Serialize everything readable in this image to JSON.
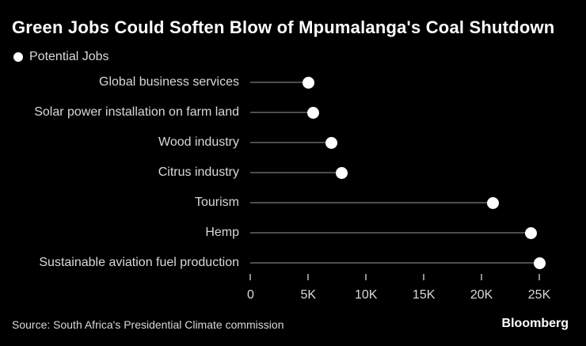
{
  "theme": {
    "background": "#000000",
    "title_color": "#ffffff",
    "label_color": "#d9d9d9",
    "line_color": "#4d4d4d",
    "dot_color": "#ffffff",
    "tick_color": "#8c8c8c"
  },
  "chart_data": {
    "type": "scatter",
    "variant": "horizontal-lollipop-dot",
    "title": "Green Jobs Could Soften Blow of Mpumalanga's Coal Shutdown",
    "legend": [
      "Potential Jobs"
    ],
    "legend_position": "top-left",
    "categories": [
      "Global business services",
      "Solar power installation on farm land",
      "Wood industry",
      "Citrus industry",
      "Tourism",
      "Hemp",
      "Sustainable aviation fuel production"
    ],
    "values": [
      5000,
      5400,
      7000,
      7900,
      21000,
      24300,
      25000
    ],
    "xlabel": "",
    "ylabel": "",
    "xlim": [
      0,
      25000
    ],
    "x_ticks": [
      {
        "label": "0",
        "value": 0
      },
      {
        "label": "5K",
        "value": 5000
      },
      {
        "label": "10K",
        "value": 10000
      },
      {
        "label": "15K",
        "value": 15000
      },
      {
        "label": "20K",
        "value": 20000
      },
      {
        "label": "25K",
        "value": 25000
      }
    ],
    "grid": false
  },
  "footer": {
    "source": "Source: South Africa's Presidential Climate commission",
    "brand": "Bloomberg"
  }
}
